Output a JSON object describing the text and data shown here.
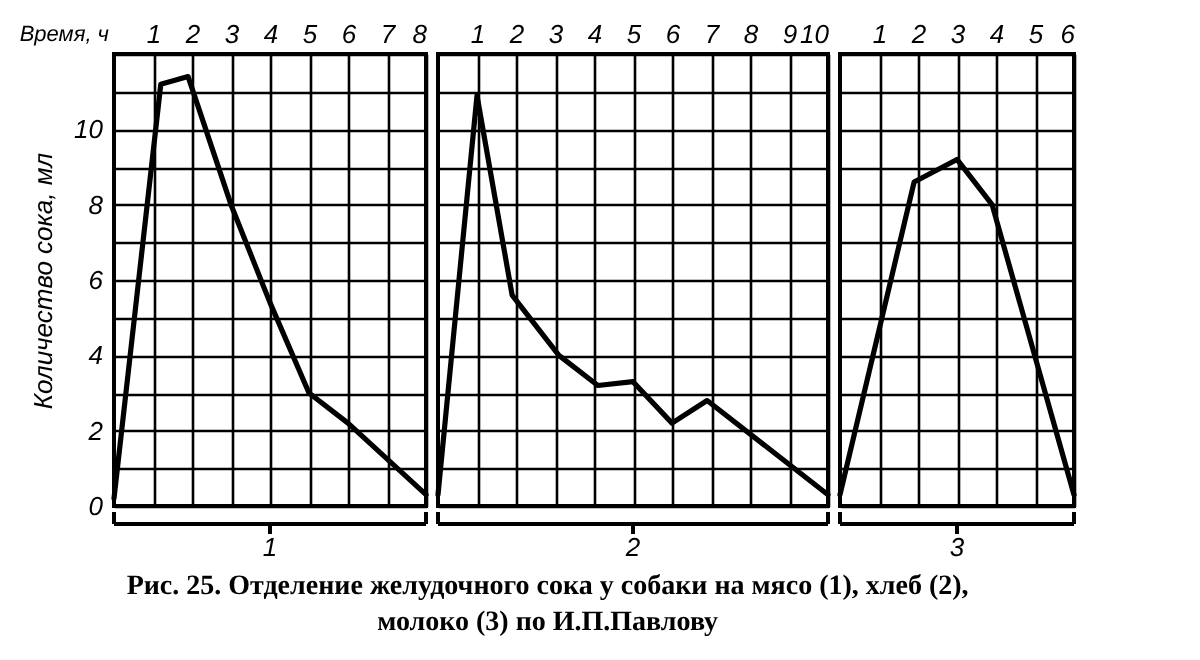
{
  "chart_data": [
    {
      "type": "line",
      "title": "Рис. 25. Отделение желудочного сока у собаки на мясо (1), хлеб (2), молоко (3) по И.П.Павлову",
      "xlabel": "Время, ч",
      "ylabel": "Количество сока, мл",
      "x": [
        0,
        1.2,
        1.9,
        3,
        4,
        5,
        6,
        8
      ],
      "series": [
        {
          "color": "#000000",
          "values": [
            0.2,
            11.2,
            11.4,
            8,
            5.4,
            3,
            2.2,
            0.3
          ]
        }
      ],
      "xlim": [
        0,
        8
      ],
      "xticks": [
        1,
        2,
        3,
        4,
        5,
        6,
        7,
        8
      ],
      "ylim": [
        0,
        12
      ],
      "yticks": [
        0,
        {
          "value": 1,
          "label": null
        },
        2,
        {
          "value": 3,
          "label": null
        },
        4,
        {
          "value": 5,
          "label": null
        },
        6,
        {
          "value": 7,
          "label": null
        },
        8,
        {
          "value": 9,
          "label": null
        },
        10,
        {
          "value": 11,
          "label": null
        },
        {
          "value": 12,
          "label": null
        }
      ],
      "annotations": [
        "1"
      ],
      "grid": true,
      "line_style": "solid"
    },
    {
      "type": "line",
      "x": [
        0,
        1,
        1.9,
        3.1,
        4.1,
        5,
        6,
        6.9,
        10
      ],
      "series": [
        {
          "color": "#000000",
          "values": [
            0.3,
            10.9,
            5.6,
            4,
            3.2,
            3.3,
            2.2,
            2.8,
            0.3
          ]
        }
      ],
      "xlim": [
        0,
        10
      ],
      "xticks": [
        1,
        2,
        3,
        4,
        5,
        6,
        7,
        8,
        9,
        10
      ],
      "ylim": [
        0,
        12
      ],
      "yticks": [
        0,
        {
          "value": 1,
          "label": null
        },
        2,
        {
          "value": 3,
          "label": null
        },
        4,
        {
          "value": 5,
          "label": null
        },
        6,
        {
          "value": 7,
          "label": null
        },
        8,
        {
          "value": 9,
          "label": null
        },
        10,
        {
          "value": 11,
          "label": null
        },
        {
          "value": 12,
          "label": null
        }
      ],
      "tick_labels": "x",
      "annotations": [
        "2"
      ],
      "grid": true,
      "line_style": "solid"
    },
    {
      "type": "line",
      "x": [
        0,
        1.9,
        3,
        3.9,
        6
      ],
      "series": [
        {
          "color": "#000000",
          "values": [
            0.3,
            8.6,
            9.2,
            8,
            0.3
          ]
        }
      ],
      "xlim": [
        0,
        6
      ],
      "xticks": [
        1,
        2,
        3,
        4,
        5,
        6
      ],
      "ylim": [
        0,
        12
      ],
      "yticks": [
        0,
        {
          "value": 1,
          "label": null
        },
        2,
        {
          "value": 3,
          "label": null
        },
        4,
        {
          "value": 5,
          "label": null
        },
        6,
        {
          "value": 7,
          "label": null
        },
        8,
        {
          "value": 9,
          "label": null
        },
        10,
        {
          "value": 11,
          "label": null
        },
        {
          "value": 12,
          "label": null
        }
      ],
      "tick_labels": "x",
      "annotations": [
        "3"
      ],
      "grid": true,
      "line_style": "solid"
    }
  ]
}
